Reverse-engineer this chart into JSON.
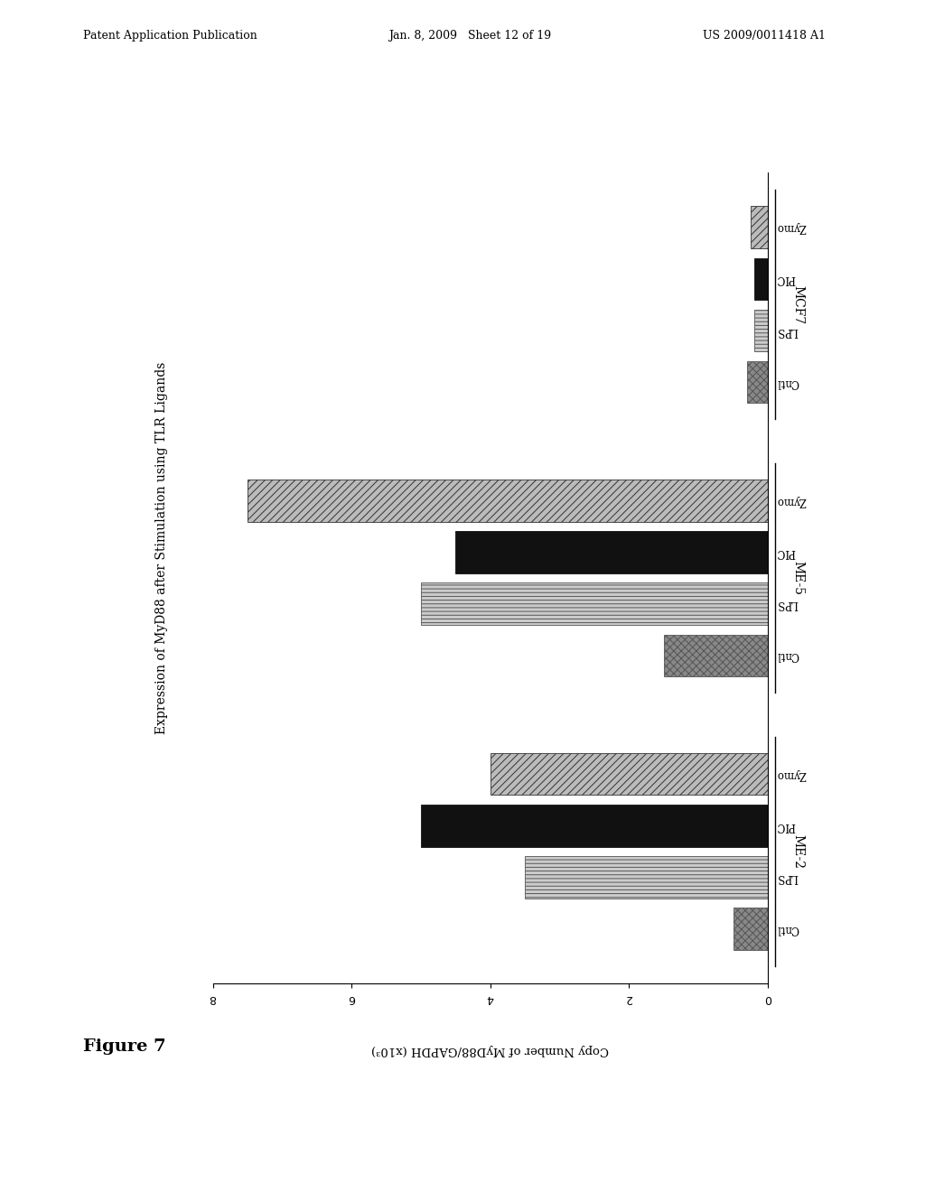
{
  "title": "Expression of MyD88 after Stimulation using TLR Ligands",
  "xlabel": "Copy Number of MyD88/GAPDH (x10³)",
  "figure_label": "Figure 7",
  "header_left": "Patent Application Publication",
  "header_mid": "Jan. 8, 2009   Sheet 12 of 19",
  "header_right": "US 2009/0011418 A1",
  "groups": [
    "MCF7",
    "ME-5",
    "ME-2"
  ],
  "conditions": [
    "Zymo",
    "PIC",
    "LPS",
    "Cntl"
  ],
  "values": {
    "MCF7": [
      0.25,
      0.2,
      0.2,
      0.3
    ],
    "ME-5": [
      7.5,
      4.5,
      5.0,
      1.5
    ],
    "ME-2": [
      4.0,
      5.0,
      3.5,
      0.5
    ]
  },
  "xlim": [
    0,
    8
  ],
  "xticks": [
    0,
    2,
    4,
    6,
    8
  ],
  "bar_height": 0.22,
  "background_color": "#ffffff",
  "hatch_patterns": [
    "////",
    "",
    "----",
    "xxxx"
  ],
  "bar_facecolors": [
    "#bbbbbb",
    "#111111",
    "#cccccc",
    "#888888"
  ],
  "bar_edgecolors": [
    "#333333",
    "#111111",
    "#555555",
    "#555555"
  ]
}
